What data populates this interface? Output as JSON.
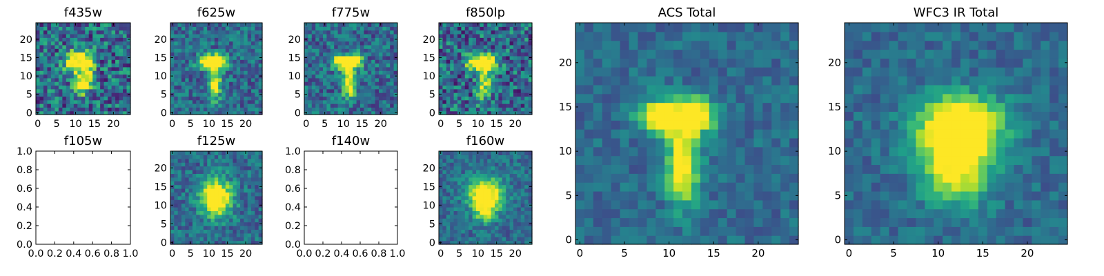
{
  "chart_data": [
    {
      "type": "heatmap",
      "title": "f435w",
      "xlim": [
        -0.5,
        24.5
      ],
      "ylim": [
        -0.5,
        24.5
      ],
      "xticks": [
        "0",
        "5",
        "10",
        "15",
        "20"
      ],
      "yticks": [
        "0",
        "5",
        "10",
        "15",
        "20"
      ],
      "grid_size": [
        25,
        25
      ],
      "colormap": "viridis",
      "noise": 0.3,
      "signal": 0.85,
      "blobs": [
        {
          "x": 9.5,
          "y": 14,
          "sx": 1.8,
          "sy": 1.8,
          "a": 1.0
        },
        {
          "x": 13,
          "y": 13,
          "sx": 1.5,
          "sy": 2.5,
          "a": 0.9
        },
        {
          "x": 11.5,
          "y": 7.5,
          "sx": 1.6,
          "sy": 2.0,
          "a": 0.8
        }
      ]
    },
    {
      "type": "heatmap",
      "title": "f625w",
      "xlim": [
        -0.5,
        24.5
      ],
      "ylim": [
        -0.5,
        24.5
      ],
      "xticks": [
        "0",
        "5",
        "10",
        "15",
        "20"
      ],
      "yticks": [
        "0",
        "5",
        "10",
        "15",
        "20"
      ],
      "grid_size": [
        25,
        25
      ],
      "colormap": "viridis",
      "noise": 0.2,
      "signal": 0.9,
      "blobs": [
        {
          "x": 9.5,
          "y": 14,
          "sx": 1.8,
          "sy": 1.3,
          "a": 1.0
        },
        {
          "x": 13,
          "y": 14,
          "sx": 1.5,
          "sy": 1.3,
          "a": 1.0
        },
        {
          "x": 11.5,
          "y": 8,
          "sx": 1.2,
          "sy": 3.0,
          "a": 0.85
        }
      ]
    },
    {
      "type": "heatmap",
      "title": "f775w",
      "xlim": [
        -0.5,
        24.5
      ],
      "ylim": [
        -0.5,
        24.5
      ],
      "xticks": [
        "0",
        "5",
        "10",
        "15",
        "20"
      ],
      "yticks": [
        "0",
        "5",
        "10",
        "15",
        "20"
      ],
      "grid_size": [
        25,
        25
      ],
      "colormap": "viridis",
      "noise": 0.22,
      "signal": 0.9,
      "blobs": [
        {
          "x": 9.5,
          "y": 14,
          "sx": 1.8,
          "sy": 1.3,
          "a": 1.0
        },
        {
          "x": 13,
          "y": 14,
          "sx": 1.5,
          "sy": 1.3,
          "a": 1.0
        },
        {
          "x": 11.5,
          "y": 8,
          "sx": 1.2,
          "sy": 3.0,
          "a": 0.85
        }
      ]
    },
    {
      "type": "heatmap",
      "title": "f850lp",
      "xlim": [
        -0.5,
        24.5
      ],
      "ylim": [
        -0.5,
        24.5
      ],
      "xticks": [
        "0",
        "5",
        "10",
        "15",
        "20"
      ],
      "yticks": [
        "0",
        "5",
        "10",
        "15",
        "20"
      ],
      "grid_size": [
        25,
        25
      ],
      "colormap": "viridis",
      "noise": 0.3,
      "signal": 0.85,
      "blobs": [
        {
          "x": 9.5,
          "y": 14,
          "sx": 1.8,
          "sy": 1.5,
          "a": 1.0
        },
        {
          "x": 13,
          "y": 14,
          "sx": 1.5,
          "sy": 1.5,
          "a": 1.0
        },
        {
          "x": 11.5,
          "y": 8,
          "sx": 1.3,
          "sy": 3.0,
          "a": 0.75
        }
      ]
    },
    {
      "type": "heatmap",
      "title": "ACS Total",
      "xlim": [
        -0.5,
        24.5
      ],
      "ylim": [
        -0.5,
        24.5
      ],
      "xticks": [
        "0",
        "5",
        "10",
        "15",
        "20"
      ],
      "yticks": [
        "0",
        "5",
        "10",
        "15",
        "20"
      ],
      "grid_size": [
        25,
        25
      ],
      "colormap": "viridis",
      "noise": 0.12,
      "signal": 0.95,
      "blobs": [
        {
          "x": 9,
          "y": 14,
          "sx": 1.6,
          "sy": 1.3,
          "a": 1.0
        },
        {
          "x": 13,
          "y": 14,
          "sx": 1.5,
          "sy": 1.3,
          "a": 1.0
        },
        {
          "x": 11.5,
          "y": 8.5,
          "sx": 1.2,
          "sy": 3.2,
          "a": 0.85
        }
      ]
    },
    {
      "type": "heatmap",
      "title": "f105w",
      "empty": true,
      "xlim": [
        0.0,
        1.0
      ],
      "ylim": [
        0.0,
        1.0
      ],
      "xticks": [
        "0.0",
        "0.2",
        "0.4",
        "0.6",
        "0.8",
        "1.0"
      ],
      "yticks": [
        "0.0",
        "0.2",
        "0.4",
        "0.6",
        "0.8",
        "1.0"
      ]
    },
    {
      "type": "heatmap",
      "title": "f125w",
      "xlim": [
        -0.5,
        24.5
      ],
      "ylim": [
        -0.5,
        24.5
      ],
      "xticks": [
        "0",
        "5",
        "10",
        "15",
        "20"
      ],
      "yticks": [
        "0",
        "5",
        "10",
        "15",
        "20"
      ],
      "grid_size": [
        25,
        25
      ],
      "colormap": "viridis",
      "noise": 0.18,
      "signal": 0.9,
      "blobs": [
        {
          "x": 12,
          "y": 12,
          "sx": 3.0,
          "sy": 3.5,
          "a": 1.0
        }
      ]
    },
    {
      "type": "heatmap",
      "title": "f140w",
      "empty": true,
      "xlim": [
        0.0,
        1.0
      ],
      "ylim": [
        0.0,
        1.0
      ],
      "xticks": [
        "0.0",
        "0.2",
        "0.4",
        "0.6",
        "0.8",
        "1.0"
      ],
      "yticks": [
        "0.0",
        "0.2",
        "0.4",
        "0.6",
        "0.8",
        "1.0"
      ]
    },
    {
      "type": "heatmap",
      "title": "f160w",
      "xlim": [
        -0.5,
        24.5
      ],
      "ylim": [
        -0.5,
        24.5
      ],
      "xticks": [
        "0",
        "5",
        "10",
        "15",
        "20"
      ],
      "yticks": [
        "0",
        "5",
        "10",
        "15",
        "20"
      ],
      "grid_size": [
        25,
        25
      ],
      "colormap": "viridis",
      "noise": 0.15,
      "signal": 0.9,
      "blobs": [
        {
          "x": 12,
          "y": 13,
          "sx": 3.2,
          "sy": 3.0,
          "a": 1.0
        },
        {
          "x": 12,
          "y": 8,
          "sx": 2.0,
          "sy": 2.0,
          "a": 0.5
        }
      ]
    },
    {
      "type": "heatmap",
      "title": "WFC3 IR Total",
      "xlim": [
        -0.5,
        24.5
      ],
      "ylim": [
        -0.5,
        24.5
      ],
      "xticks": [
        "0",
        "5",
        "10",
        "15",
        "20"
      ],
      "yticks": [
        "0",
        "5",
        "10",
        "15",
        "20"
      ],
      "grid_size": [
        25,
        25
      ],
      "colormap": "viridis",
      "noise": 0.12,
      "signal": 0.95,
      "blobs": [
        {
          "x": 12.5,
          "y": 13,
          "sx": 3.2,
          "sy": 2.2,
          "a": 1.0
        },
        {
          "x": 12,
          "y": 8.5,
          "sx": 2.6,
          "sy": 3.0,
          "a": 0.8
        }
      ]
    }
  ]
}
